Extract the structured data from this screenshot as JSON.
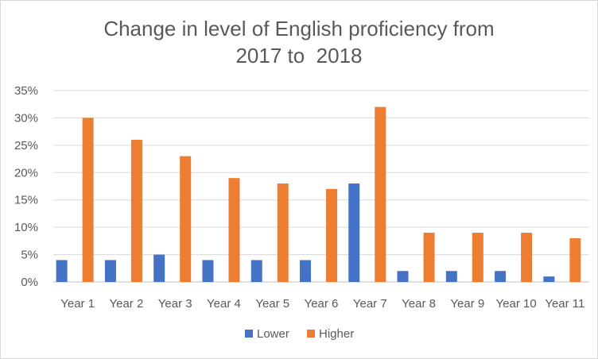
{
  "chart_data": {
    "type": "bar",
    "title_lines": [
      "Change in level of English proficiency from",
      "2017 to  2018"
    ],
    "categories": [
      "Year 1",
      "Year 2",
      "Year 3",
      "Year 4",
      "Year 5",
      "Year 6",
      "Year 7",
      "Year 8",
      "Year 9",
      "Year 10",
      "Year 11"
    ],
    "series": [
      {
        "name": "Lower",
        "color": "#4472C4",
        "values": [
          4,
          4,
          5,
          4,
          4,
          4,
          18,
          2,
          2,
          2,
          1
        ]
      },
      {
        "name": "Higher",
        "color": "#ED7D31",
        "values": [
          30,
          26,
          23,
          19,
          18,
          17,
          32,
          9,
          9,
          9,
          8
        ]
      }
    ],
    "y_ticks": [
      "0%",
      "5%",
      "10%",
      "15%",
      "20%",
      "25%",
      "30%",
      "35%"
    ],
    "ylim": [
      0,
      35
    ],
    "y_unit": "%",
    "xlabel": "",
    "ylabel": "",
    "grid": true,
    "legend_position": "bottom"
  }
}
